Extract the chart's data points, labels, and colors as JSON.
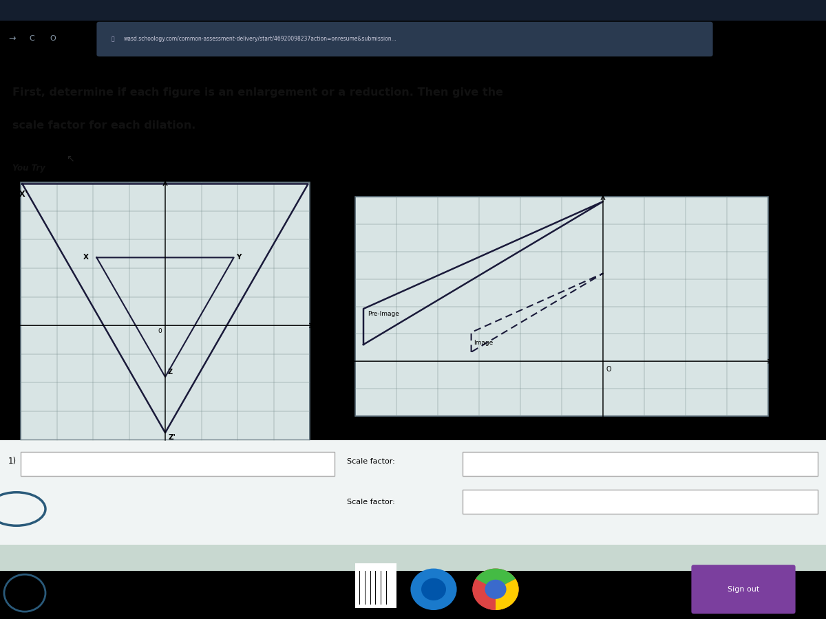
{
  "bg_color_top": "#1a2535",
  "bg_color_browser": "#1e2d42",
  "bg_color_page": "#b8cece",
  "url_text": "wasd.schoology.com/common-assessment-delivery/start/46920098237action=onresume&submission...",
  "title_line1": "First, determine if each figure is an enlargement or a reduction. Then give the",
  "title_line2": "scale factor for each dilation.",
  "you_try_label": "You Try",
  "pre_image_label": "Pre-Image",
  "image_label": "Image",
  "scale_factor_label1": "Scale factor:",
  "scale_factor_label2": "Scale factor:",
  "input1_label": "1)",
  "sign_out_text": "Sign out",
  "taskbar_color": "#0d1420",
  "sign_out_bg": "#7b3f9e",
  "graph_bg": "#d8e4e4",
  "grid_color": "#7a9090",
  "line_color": "#1a1a3a",
  "white_bg": "#f0f4f4"
}
